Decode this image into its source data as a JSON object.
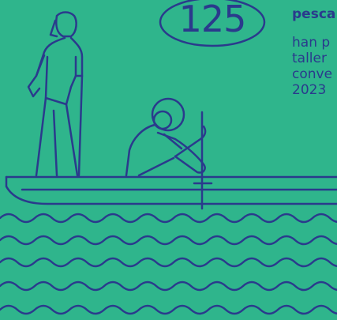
{
  "stat": {
    "value": "125"
  },
  "text": {
    "headline": "pesca",
    "lines": [
      "han p",
      "taller",
      "conve",
      "2023"
    ]
  },
  "colors": {
    "background": "#2fb58c",
    "ink": "#2a3a8c"
  }
}
